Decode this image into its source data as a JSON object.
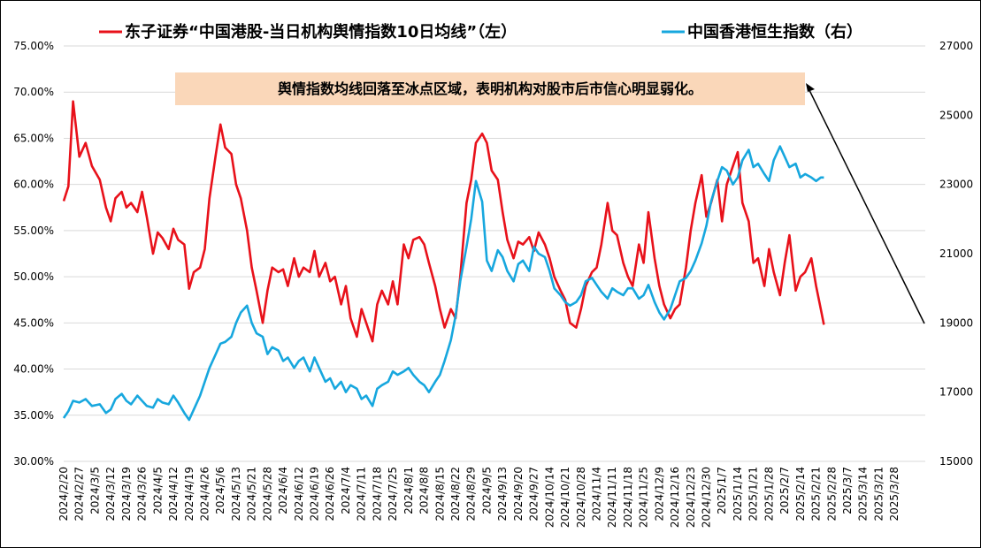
{
  "chart_data": {
    "type": "line",
    "legend": {
      "placement": "top",
      "entries": [
        {
          "key": "left",
          "label": "东子证券“中国港股-当日机构舆情指数10日均线”（左）",
          "color": "#e8111a"
        },
        {
          "key": "right",
          "label": "中国香港恒生指数（右）",
          "color": "#17a7de"
        }
      ]
    },
    "annotation": {
      "text": "舆情指数均线回落至冰点区域，表明机构对股市后市信心明显弱化。",
      "background": "#fad7b9"
    },
    "y_left": {
      "min": 30,
      "max": 75,
      "step": 5,
      "tick_labels": [
        "30.00%",
        "35.00%",
        "40.00%",
        "45.00%",
        "50.00%",
        "55.00%",
        "60.00%",
        "65.00%",
        "70.00%",
        "75.00%"
      ]
    },
    "y_right": {
      "min": 15000,
      "max": 27000,
      "step": 2000,
      "tick_labels": [
        "15000",
        "17000",
        "19000",
        "21000",
        "23000",
        "25000",
        "27000"
      ]
    },
    "grid": "horizontal",
    "x_tick_labels": [
      "2024/2/20",
      "2024/2/27",
      "2024/3/5",
      "2024/3/12",
      "2024/3/19",
      "2024/3/26",
      "2024/4/5",
      "2024/4/12",
      "2024/4/19",
      "2024/4/26",
      "2024/5/6",
      "2024/5/13",
      "2024/5/21",
      "2024/5/28",
      "2024/6/4",
      "2024/6/12",
      "2024/6/19",
      "2024/6/26",
      "2024/7/4",
      "2024/7/11",
      "2024/7/18",
      "2024/7/25",
      "2024/8/1",
      "2024/8/8",
      "2024/8/15",
      "2024/8/22",
      "2024/8/29",
      "2024/9/5",
      "2024/9/13",
      "2024/9/20",
      "2024/9/27",
      "2024/10/14",
      "2024/10/21",
      "2024/10/28",
      "2024/11/4",
      "2024/11/11",
      "2024/11/18",
      "2024/11/25",
      "2024/12/9",
      "2024/12/16",
      "2024/12/23",
      "2024/12/30",
      "2025/1/7",
      "2025/1/14",
      "2025/1/21",
      "2025/1/28",
      "2025/2/7",
      "2025/2/14",
      "2025/2/21",
      "2025/2/28",
      "2025/3/7",
      "2025/3/14",
      "2025/3/21",
      "2025/3/28"
    ],
    "series": [
      {
        "key": "left",
        "axis": "left",
        "color": "#e8111a",
        "points": [
          [
            0,
            58.2
          ],
          [
            0.3,
            59.8
          ],
          [
            0.6,
            69.0
          ],
          [
            1.0,
            63.0
          ],
          [
            1.4,
            64.5
          ],
          [
            1.8,
            62.0
          ],
          [
            2.3,
            60.5
          ],
          [
            2.7,
            57.5
          ],
          [
            3.0,
            56.0
          ],
          [
            3.3,
            58.5
          ],
          [
            3.7,
            59.2
          ],
          [
            4.0,
            57.5
          ],
          [
            4.3,
            58.0
          ],
          [
            4.7,
            57.0
          ],
          [
            5.0,
            59.2
          ],
          [
            5.3,
            56.5
          ],
          [
            5.7,
            52.5
          ],
          [
            6.0,
            54.8
          ],
          [
            6.3,
            54.2
          ],
          [
            6.7,
            53.0
          ],
          [
            7.0,
            55.2
          ],
          [
            7.3,
            54.0
          ],
          [
            7.7,
            53.5
          ],
          [
            8.0,
            48.7
          ],
          [
            8.3,
            50.5
          ],
          [
            8.7,
            51.0
          ],
          [
            9.0,
            53.0
          ],
          [
            9.3,
            58.5
          ],
          [
            9.7,
            63.2
          ],
          [
            10.0,
            66.5
          ],
          [
            10.3,
            64.0
          ],
          [
            10.7,
            63.3
          ],
          [
            11.0,
            60.0
          ],
          [
            11.3,
            58.5
          ],
          [
            11.7,
            55.0
          ],
          [
            12.0,
            51.0
          ],
          [
            12.3,
            48.5
          ],
          [
            12.7,
            45.0
          ],
          [
            13.0,
            48.5
          ],
          [
            13.3,
            51.0
          ],
          [
            13.7,
            50.5
          ],
          [
            14.0,
            50.8
          ],
          [
            14.3,
            49.0
          ],
          [
            14.7,
            52.0
          ],
          [
            15.0,
            50.0
          ],
          [
            15.3,
            51.0
          ],
          [
            15.7,
            50.5
          ],
          [
            16.0,
            52.8
          ],
          [
            16.3,
            50.0
          ],
          [
            16.7,
            51.5
          ],
          [
            17.0,
            49.5
          ],
          [
            17.3,
            50.0
          ],
          [
            17.7,
            47.0
          ],
          [
            18.0,
            49.0
          ],
          [
            18.3,
            45.5
          ],
          [
            18.7,
            43.5
          ],
          [
            19.0,
            46.5
          ],
          [
            19.3,
            45.0
          ],
          [
            19.7,
            43.0
          ],
          [
            20.0,
            47.0
          ],
          [
            20.3,
            48.5
          ],
          [
            20.7,
            47.0
          ],
          [
            21.0,
            49.5
          ],
          [
            21.3,
            47.0
          ],
          [
            21.7,
            53.5
          ],
          [
            22.0,
            52.0
          ],
          [
            22.3,
            54.0
          ],
          [
            22.7,
            54.3
          ],
          [
            23.0,
            53.5
          ],
          [
            23.3,
            51.5
          ],
          [
            23.7,
            49.0
          ],
          [
            24.0,
            46.5
          ],
          [
            24.3,
            44.5
          ],
          [
            24.7,
            46.5
          ],
          [
            25.0,
            45.5
          ],
          [
            25.3,
            50.0
          ],
          [
            25.7,
            58.0
          ],
          [
            26.0,
            60.5
          ],
          [
            26.3,
            64.5
          ],
          [
            26.7,
            65.5
          ],
          [
            27.0,
            64.5
          ],
          [
            27.3,
            61.5
          ],
          [
            27.7,
            60.5
          ],
          [
            28.0,
            57.0
          ],
          [
            28.3,
            54.0
          ],
          [
            28.7,
            52.0
          ],
          [
            29.0,
            53.8
          ],
          [
            29.3,
            53.5
          ],
          [
            29.7,
            54.3
          ],
          [
            30.0,
            52.8
          ],
          [
            30.3,
            54.8
          ],
          [
            30.7,
            53.5
          ],
          [
            31.0,
            52.0
          ],
          [
            31.3,
            50.0
          ],
          [
            31.7,
            48.5
          ],
          [
            32.0,
            47.5
          ],
          [
            32.3,
            45.0
          ],
          [
            32.7,
            44.5
          ],
          [
            33.0,
            46.5
          ],
          [
            33.3,
            49.0
          ],
          [
            33.7,
            50.5
          ],
          [
            34.0,
            51.0
          ],
          [
            34.3,
            53.5
          ],
          [
            34.7,
            58.0
          ],
          [
            35.0,
            55.0
          ],
          [
            35.3,
            54.5
          ],
          [
            35.7,
            51.5
          ],
          [
            36.0,
            50.0
          ],
          [
            36.3,
            49.0
          ],
          [
            36.7,
            53.5
          ],
          [
            37.0,
            51.5
          ],
          [
            37.3,
            57.0
          ],
          [
            37.7,
            52.0
          ],
          [
            38.0,
            49.0
          ],
          [
            38.3,
            47.0
          ],
          [
            38.7,
            45.5
          ],
          [
            39.0,
            46.5
          ],
          [
            39.3,
            47.0
          ],
          [
            39.7,
            51.0
          ],
          [
            40.0,
            55.0
          ],
          [
            40.3,
            58.0
          ],
          [
            40.7,
            61.0
          ],
          [
            41.0,
            56.5
          ],
          [
            41.3,
            58.0
          ],
          [
            41.7,
            60.5
          ],
          [
            42.0,
            56.0
          ],
          [
            42.3,
            60.0
          ],
          [
            42.7,
            62.0
          ],
          [
            43.0,
            63.5
          ],
          [
            43.3,
            58.0
          ],
          [
            43.7,
            56.0
          ],
          [
            44.0,
            51.5
          ],
          [
            44.3,
            52.0
          ],
          [
            44.7,
            49.0
          ],
          [
            45.0,
            53.0
          ],
          [
            45.3,
            50.5
          ],
          [
            45.7,
            48.0
          ],
          [
            46.0,
            51.5
          ],
          [
            46.3,
            54.5
          ],
          [
            46.7,
            48.5
          ],
          [
            47.0,
            50.0
          ],
          [
            47.3,
            50.5
          ],
          [
            47.7,
            52.0
          ],
          [
            48.0,
            49.0
          ],
          [
            48.3,
            46.5
          ],
          [
            48.5,
            44.8
          ]
        ]
      },
      {
        "key": "right",
        "axis": "right",
        "color": "#17a7de",
        "points": [
          [
            0,
            16250
          ],
          [
            0.3,
            16450
          ],
          [
            0.6,
            16750
          ],
          [
            1.0,
            16700
          ],
          [
            1.4,
            16800
          ],
          [
            1.8,
            16600
          ],
          [
            2.3,
            16650
          ],
          [
            2.7,
            16400
          ],
          [
            3.0,
            16500
          ],
          [
            3.3,
            16800
          ],
          [
            3.7,
            16950
          ],
          [
            4.0,
            16750
          ],
          [
            4.3,
            16650
          ],
          [
            4.7,
            16900
          ],
          [
            5.0,
            16750
          ],
          [
            5.3,
            16600
          ],
          [
            5.7,
            16550
          ],
          [
            6.0,
            16800
          ],
          [
            6.3,
            16700
          ],
          [
            6.7,
            16650
          ],
          [
            7.0,
            16900
          ],
          [
            7.3,
            16700
          ],
          [
            7.7,
            16400
          ],
          [
            8.0,
            16200
          ],
          [
            8.3,
            16500
          ],
          [
            8.7,
            16900
          ],
          [
            9.0,
            17300
          ],
          [
            9.3,
            17700
          ],
          [
            9.7,
            18100
          ],
          [
            10.0,
            18400
          ],
          [
            10.3,
            18450
          ],
          [
            10.7,
            18600
          ],
          [
            11.0,
            19000
          ],
          [
            11.3,
            19300
          ],
          [
            11.7,
            19500
          ],
          [
            12.0,
            19000
          ],
          [
            12.3,
            18700
          ],
          [
            12.7,
            18600
          ],
          [
            13.0,
            18100
          ],
          [
            13.3,
            18300
          ],
          [
            13.7,
            18200
          ],
          [
            14.0,
            17900
          ],
          [
            14.3,
            18000
          ],
          [
            14.7,
            17700
          ],
          [
            15.0,
            17900
          ],
          [
            15.3,
            18000
          ],
          [
            15.7,
            17600
          ],
          [
            16.0,
            18000
          ],
          [
            16.3,
            17700
          ],
          [
            16.7,
            17300
          ],
          [
            17.0,
            17400
          ],
          [
            17.3,
            17100
          ],
          [
            17.7,
            17300
          ],
          [
            18.0,
            17000
          ],
          [
            18.3,
            17200
          ],
          [
            18.7,
            17100
          ],
          [
            19.0,
            16800
          ],
          [
            19.3,
            16900
          ],
          [
            19.7,
            16600
          ],
          [
            20.0,
            17100
          ],
          [
            20.3,
            17200
          ],
          [
            20.7,
            17300
          ],
          [
            21.0,
            17600
          ],
          [
            21.3,
            17500
          ],
          [
            21.7,
            17600
          ],
          [
            22.0,
            17700
          ],
          [
            22.3,
            17500
          ],
          [
            22.7,
            17300
          ],
          [
            23.0,
            17200
          ],
          [
            23.3,
            17000
          ],
          [
            23.7,
            17300
          ],
          [
            24.0,
            17500
          ],
          [
            24.3,
            17900
          ],
          [
            24.7,
            18500
          ],
          [
            25.0,
            19200
          ],
          [
            25.3,
            20200
          ],
          [
            25.7,
            21200
          ],
          [
            26.0,
            22000
          ],
          [
            26.3,
            23100
          ],
          [
            26.7,
            22500
          ],
          [
            27.0,
            20800
          ],
          [
            27.3,
            20500
          ],
          [
            27.7,
            21100
          ],
          [
            28.0,
            20900
          ],
          [
            28.3,
            20500
          ],
          [
            28.7,
            20200
          ],
          [
            29.0,
            20700
          ],
          [
            29.3,
            20800
          ],
          [
            29.7,
            20500
          ],
          [
            30.0,
            21200
          ],
          [
            30.3,
            21000
          ],
          [
            30.7,
            20900
          ],
          [
            31.0,
            20500
          ],
          [
            31.3,
            20000
          ],
          [
            31.7,
            19800
          ],
          [
            32.0,
            19600
          ],
          [
            32.3,
            19500
          ],
          [
            32.7,
            19600
          ],
          [
            33.0,
            19800
          ],
          [
            33.3,
            20200
          ],
          [
            33.7,
            20300
          ],
          [
            34.0,
            20100
          ],
          [
            34.3,
            19900
          ],
          [
            34.7,
            19700
          ],
          [
            35.0,
            20000
          ],
          [
            35.3,
            19900
          ],
          [
            35.7,
            19800
          ],
          [
            36.0,
            20000
          ],
          [
            36.3,
            20000
          ],
          [
            36.7,
            19700
          ],
          [
            37.0,
            19800
          ],
          [
            37.3,
            20100
          ],
          [
            37.7,
            19600
          ],
          [
            38.0,
            19300
          ],
          [
            38.3,
            19100
          ],
          [
            38.7,
            19400
          ],
          [
            39.0,
            19800
          ],
          [
            39.3,
            20200
          ],
          [
            39.7,
            20300
          ],
          [
            40.0,
            20500
          ],
          [
            40.3,
            20800
          ],
          [
            40.7,
            21300
          ],
          [
            41.0,
            21800
          ],
          [
            41.3,
            22500
          ],
          [
            41.7,
            23100
          ],
          [
            42.0,
            23500
          ],
          [
            42.3,
            23400
          ],
          [
            42.7,
            23000
          ],
          [
            43.0,
            23200
          ],
          [
            43.3,
            23700
          ],
          [
            43.7,
            24000
          ],
          [
            44.0,
            23500
          ],
          [
            44.3,
            23600
          ],
          [
            44.7,
            23300
          ],
          [
            45.0,
            23100
          ],
          [
            45.3,
            23700
          ],
          [
            45.7,
            24100
          ],
          [
            46.0,
            23800
          ],
          [
            46.3,
            23500
          ],
          [
            46.7,
            23600
          ],
          [
            47.0,
            23200
          ],
          [
            47.3,
            23300
          ],
          [
            47.7,
            23200
          ],
          [
            48.0,
            23100
          ],
          [
            48.3,
            23200
          ],
          [
            48.5,
            23200
          ]
        ]
      }
    ]
  }
}
